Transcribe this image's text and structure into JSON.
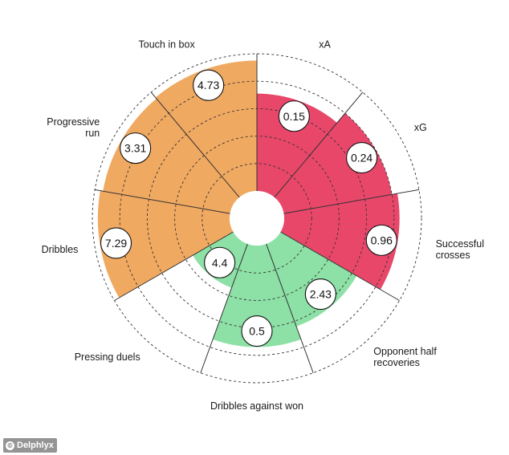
{
  "chart_data": {
    "type": "polar-bar",
    "title": "",
    "rmax": 5,
    "ring_count": 5,
    "colors": {
      "orange": "#f0a961",
      "red": "#e8476a",
      "green": "#8de0a6",
      "grid": "#333333"
    },
    "segments": [
      {
        "label": "xA",
        "value": 0.15,
        "scaled": 3.55,
        "color": "red",
        "label_lines": [
          "xA"
        ]
      },
      {
        "label": "xG",
        "value": 0.24,
        "scaled": 4.0,
        "color": "red",
        "label_lines": [
          "xG"
        ]
      },
      {
        "label": "Successful crosses",
        "value": 0.96,
        "scaled": 4.2,
        "color": "red",
        "label_lines": [
          "Successful",
          "crosses"
        ]
      },
      {
        "label": "Opponent half recoveries",
        "value": 2.43,
        "scaled": 3.2,
        "color": "green",
        "label_lines": [
          "Opponent half",
          "recoveries"
        ]
      },
      {
        "label": "Dribbles against won",
        "value": 0.5,
        "scaled": 3.7,
        "color": "green",
        "label_lines": [
          "Dribbles against won"
        ]
      },
      {
        "label": "Pressing duels",
        "value": 4.4,
        "scaled": 1.7,
        "color": "green",
        "label_lines": [
          "Pressing duels"
        ]
      },
      {
        "label": "Dribbles",
        "value": 7.29,
        "scaled": 4.8,
        "color": "orange",
        "label_lines": [
          "Dribbles"
        ]
      },
      {
        "label": "Progressive run",
        "value": 3.31,
        "scaled": 4.7,
        "color": "orange",
        "label_lines": [
          "Progressive",
          "run"
        ]
      },
      {
        "label": "Touch in box",
        "value": 4.73,
        "scaled": 4.75,
        "color": "orange",
        "label_lines": [
          "Touch in box"
        ]
      }
    ]
  },
  "footer": {
    "source": "Delphlyx",
    "icon": "copyright-icon"
  }
}
